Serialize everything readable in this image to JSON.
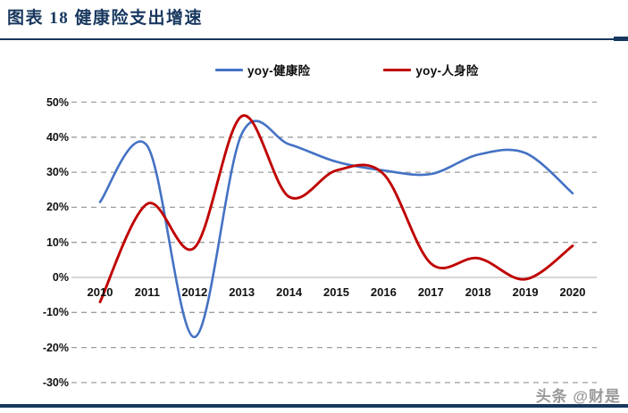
{
  "header": {
    "title": "图表 18 健康险支出增速"
  },
  "legend": [
    {
      "label": "yoy-健康险",
      "color": "#4472C4"
    },
    {
      "label": "yoy-人身险",
      "color": "#C00000"
    }
  ],
  "footer": {
    "watermark": "头条 @财是"
  },
  "colors": {
    "brand_navy": "#17375E",
    "grid_dashed": "#9E9E9E",
    "zero_axis": "#C9C9C9",
    "series_blue": "#4472C4",
    "series_red": "#C00000"
  },
  "chart_data": {
    "type": "line",
    "smooth": true,
    "title": "图表 18 健康险支出增速",
    "x": [
      2010,
      2011,
      2012,
      2013,
      2014,
      2015,
      2016,
      2017,
      2018,
      2019,
      2020
    ],
    "series": [
      {
        "name": "yoy-健康险",
        "color": "#4472C4",
        "values": [
          21.5,
          37.5,
          -17,
          41,
          38,
          33,
          30.5,
          29.5,
          35,
          35.5,
          24
        ]
      },
      {
        "name": "yoy-人身险",
        "color": "#C00000",
        "values": [
          -7,
          21,
          8.5,
          46,
          23,
          30.5,
          29.5,
          4,
          5.5,
          -0.5,
          9
        ]
      }
    ],
    "ylim": [
      -30,
      50
    ],
    "ytick_step": 10,
    "ytick_labels": [
      "50%",
      "40%",
      "30%",
      "20%",
      "10%",
      "0%",
      "-10%",
      "-20%",
      "-30%"
    ],
    "ytick_values": [
      50,
      40,
      30,
      20,
      10,
      0,
      -10,
      -20,
      -30
    ],
    "xlabel": "",
    "ylabel": "",
    "grid": "horizontal-dashed",
    "legend_position": "top-center"
  }
}
